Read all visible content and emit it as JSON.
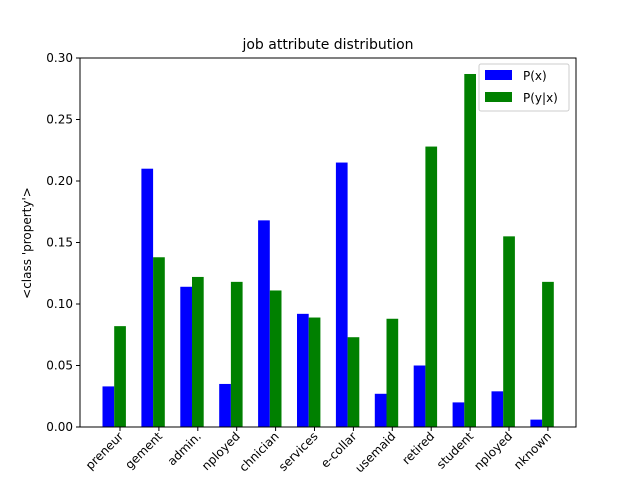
{
  "chart_data": {
    "type": "bar",
    "title": "job attribute distribution",
    "xlabel": "",
    "ylabel": "<class 'property'>",
    "ylim": [
      0,
      0.3
    ],
    "yticks": [
      "0.00",
      "0.05",
      "0.10",
      "0.15",
      "0.20",
      "0.25",
      "0.30"
    ],
    "categories": [
      "preneur",
      "gement",
      "admin.",
      "nployed",
      "chnician",
      "services",
      "e-collar",
      "usemaid",
      "retired",
      "student",
      "nployed",
      "nknown"
    ],
    "series": [
      {
        "name": "P(x)",
        "color": "#0000ff",
        "values": [
          0.033,
          0.21,
          0.114,
          0.035,
          0.168,
          0.092,
          0.215,
          0.027,
          0.05,
          0.02,
          0.029,
          0.006
        ]
      },
      {
        "name": "P(y|x)",
        "color": "#008000",
        "values": [
          0.082,
          0.138,
          0.122,
          0.118,
          0.111,
          0.089,
          0.073,
          0.088,
          0.228,
          0.287,
          0.155,
          0.118
        ]
      }
    ],
    "legend": "top-right",
    "grid": false
  }
}
